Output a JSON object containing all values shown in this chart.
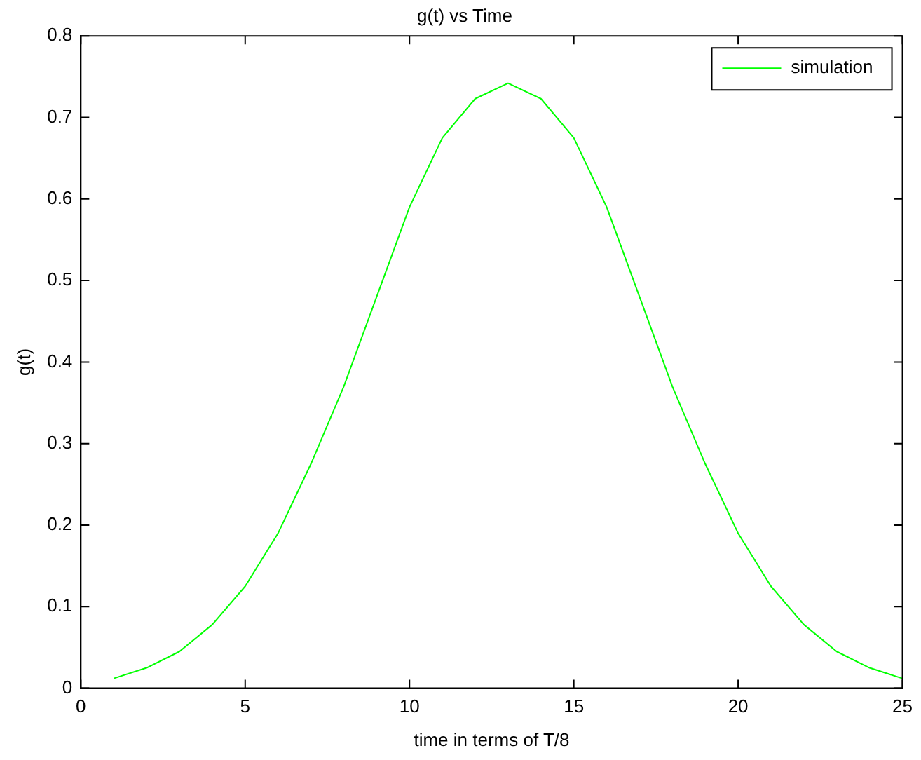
{
  "chart_data": {
    "type": "line",
    "title": "g(t) vs Time",
    "xlabel": "time in terms of T/8",
    "ylabel": "g(t)",
    "x": [
      1,
      2,
      3,
      4,
      5,
      6,
      7,
      8,
      9,
      10,
      11,
      12,
      13,
      14,
      15,
      16,
      17,
      18,
      19,
      20,
      21,
      22,
      23,
      24,
      25
    ],
    "series": [
      {
        "name": "simulation",
        "color": "#00ff00",
        "values": [
          0.012,
          0.025,
          0.045,
          0.078,
          0.125,
          0.19,
          0.275,
          0.37,
          0.48,
          0.59,
          0.675,
          0.723,
          0.742,
          0.723,
          0.675,
          0.59,
          0.48,
          0.37,
          0.275,
          0.19,
          0.125,
          0.078,
          0.045,
          0.025,
          0.012
        ]
      }
    ],
    "xlim": [
      0,
      25
    ],
    "xticks": [
      0,
      5,
      10,
      15,
      20,
      25
    ],
    "ylim": [
      0,
      0.8
    ],
    "yticks": [
      0,
      0.1,
      0.2,
      0.3,
      0.4,
      0.5,
      0.6,
      0.7,
      0.8
    ],
    "grid": false,
    "legend": "top right",
    "marker": "none",
    "line_style": "solid"
  }
}
